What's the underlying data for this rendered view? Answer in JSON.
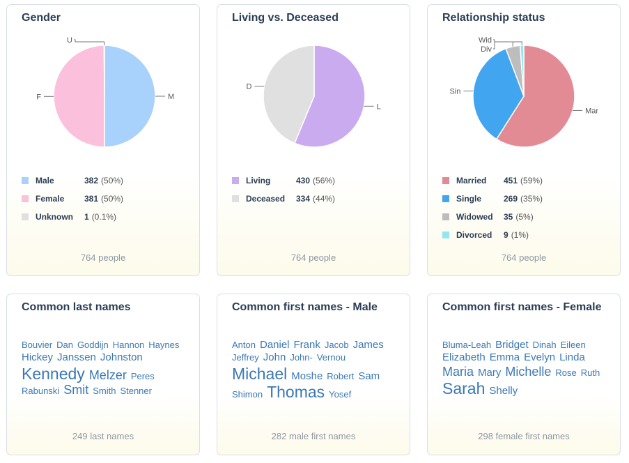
{
  "charts": [
    {
      "title": "Gender",
      "footer": "764 people",
      "legend": [
        {
          "label": "Male",
          "count": "382",
          "pct": "(50%)",
          "color": "#a8d2fb"
        },
        {
          "label": "Female",
          "count": "381",
          "pct": "(50%)",
          "color": "#fbc1dc"
        },
        {
          "label": "Unknown",
          "count": "1",
          "pct": "(0.1%)",
          "color": "#e0e0e0"
        }
      ]
    },
    {
      "title": "Living vs. Deceased",
      "footer": "764 people",
      "legend": [
        {
          "label": "Living",
          "count": "430",
          "pct": "(56%)",
          "color": "#cbabef"
        },
        {
          "label": "Deceased",
          "count": "334",
          "pct": "(44%)",
          "color": "#e0e0e0"
        }
      ]
    },
    {
      "title": "Relationship status",
      "footer": "764 people",
      "legend": [
        {
          "label": "Married",
          "count": "451",
          "pct": "(59%)",
          "color": "#e38b95"
        },
        {
          "label": "Single",
          "count": "269",
          "pct": "(35%)",
          "color": "#42a5f0"
        },
        {
          "label": "Widowed",
          "count": "35",
          "pct": "(5%)",
          "color": "#bdbdbd"
        },
        {
          "label": "Divorced",
          "count": "9",
          "pct": "(1%)",
          "color": "#94e6ef"
        }
      ]
    }
  ],
  "chart_data": [
    {
      "type": "pie",
      "title": "Gender",
      "slices": [
        {
          "label": "M",
          "value": 382,
          "color": "#a8d2fb"
        },
        {
          "label": "F",
          "value": 381,
          "color": "#fbc1dc"
        },
        {
          "label": "U",
          "value": 1,
          "color": "#e0e0e0"
        }
      ]
    },
    {
      "type": "pie",
      "title": "Living vs. Deceased",
      "slices": [
        {
          "label": "L",
          "value": 430,
          "color": "#cbabef"
        },
        {
          "label": "D",
          "value": 334,
          "color": "#e0e0e0"
        }
      ]
    },
    {
      "type": "pie",
      "title": "Relationship status",
      "slices": [
        {
          "label": "Mar",
          "value": 451,
          "color": "#e38b95"
        },
        {
          "label": "Sin",
          "value": 269,
          "color": "#42a5f0"
        },
        {
          "label": "Wid",
          "value": 35,
          "color": "#bdbdbd"
        },
        {
          "label": "Div",
          "value": 9,
          "color": "#94e6ef"
        }
      ]
    }
  ],
  "name_clouds": [
    {
      "title": "Common last names",
      "footer": "249 last names",
      "names": [
        {
          "text": "Bouvier",
          "size": 1
        },
        {
          "text": "Dan",
          "size": 1
        },
        {
          "text": "Goddijn",
          "size": 1
        },
        {
          "text": "Hannon",
          "size": 1
        },
        {
          "text": "Haynes",
          "size": 1
        },
        {
          "text": "Hickey",
          "size": 2
        },
        {
          "text": "Janssen",
          "size": 2
        },
        {
          "text": "Johnston",
          "size": 2
        },
        {
          "text": "Kennedy",
          "size": 4
        },
        {
          "text": "Melzer",
          "size": 3
        },
        {
          "text": "Peres",
          "size": 1
        },
        {
          "text": "Rabunski",
          "size": 1
        },
        {
          "text": "Smit",
          "size": 3
        },
        {
          "text": "Smith",
          "size": 1
        },
        {
          "text": "Stenner",
          "size": 1
        }
      ]
    },
    {
      "title": "Common first names - Male",
      "footer": "282 male first names",
      "names": [
        {
          "text": "Anton",
          "size": 1
        },
        {
          "text": "Daniel",
          "size": 2
        },
        {
          "text": "Frank",
          "size": 2
        },
        {
          "text": "Jacob",
          "size": 1
        },
        {
          "text": "James",
          "size": 2
        },
        {
          "text": "Jeffrey",
          "size": 1
        },
        {
          "text": "John",
          "size": 2
        },
        {
          "text": "John-",
          "size": 1
        },
        {
          "text": "Vernou",
          "size": 1
        },
        {
          "text": "Michael",
          "size": 4
        },
        {
          "text": "Moshe",
          "size": 2
        },
        {
          "text": "Robert",
          "size": 1
        },
        {
          "text": "Sam",
          "size": 2
        },
        {
          "text": "Shimon",
          "size": 1
        },
        {
          "text": "Thomas",
          "size": 4
        },
        {
          "text": "Yosef",
          "size": 1
        }
      ]
    },
    {
      "title": "Common first names - Female",
      "footer": "298 female first names",
      "names": [
        {
          "text": "Bluma-Leah",
          "size": 1
        },
        {
          "text": "Bridget",
          "size": 2
        },
        {
          "text": "Dinah",
          "size": 1
        },
        {
          "text": "Eileen",
          "size": 1
        },
        {
          "text": "Elizabeth",
          "size": 2
        },
        {
          "text": "Emma",
          "size": 2
        },
        {
          "text": "Evelyn",
          "size": 2
        },
        {
          "text": "Linda",
          "size": 2
        },
        {
          "text": "Maria",
          "size": 3
        },
        {
          "text": "Mary",
          "size": 2
        },
        {
          "text": "Michelle",
          "size": 3
        },
        {
          "text": "Rose",
          "size": 1
        },
        {
          "text": "Ruth",
          "size": 1
        },
        {
          "text": "Sarah",
          "size": 4
        },
        {
          "text": "Shelly",
          "size": 2
        }
      ]
    }
  ]
}
